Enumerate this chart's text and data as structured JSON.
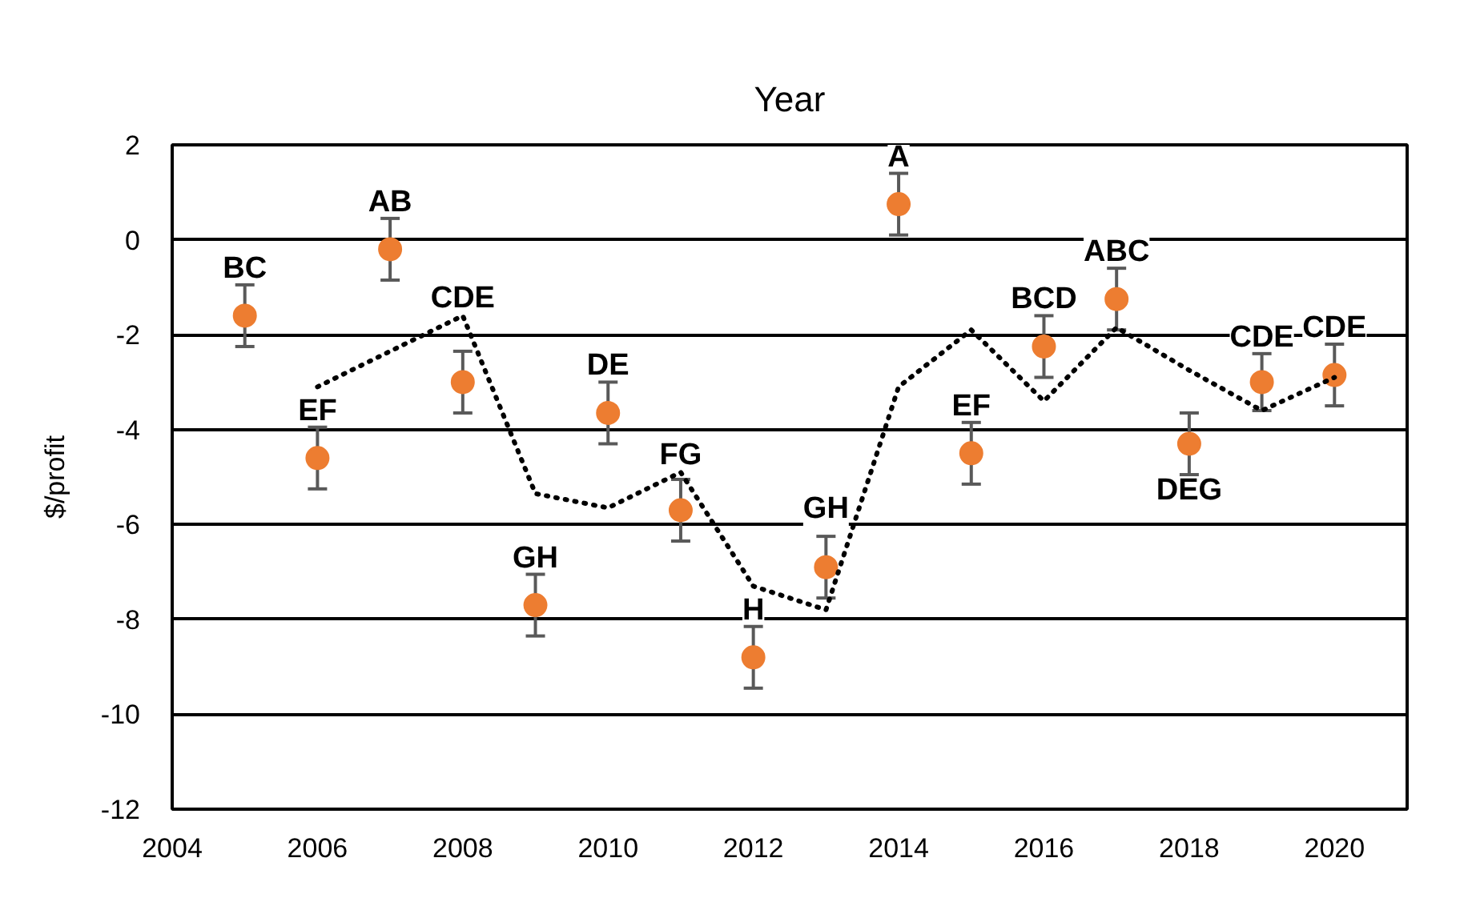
{
  "chart_data": {
    "type": "scatter",
    "xlabel": "Year",
    "ylabel": "$/profit",
    "x": [
      2005,
      2006,
      2007,
      2008,
      2009,
      2010,
      2011,
      2012,
      2013,
      2014,
      2015,
      2016,
      2017,
      2018,
      2019,
      2020
    ],
    "xlim": [
      2004,
      2021
    ],
    "xticks": [
      2004,
      2006,
      2008,
      2010,
      2012,
      2014,
      2016,
      2018,
      2020
    ],
    "ylim": [
      -12,
      2
    ],
    "yticks": [
      -12,
      -10,
      -8,
      -6,
      -4,
      -2,
      0,
      2
    ],
    "grid": "y",
    "marker": "circle",
    "series": [
      {
        "color": "#ed7d31",
        "values": [
          -1.6,
          -4.6,
          -0.2,
          -3.0,
          -7.7,
          -3.65,
          -5.7,
          -8.8,
          -6.9,
          0.75,
          -4.5,
          -2.25,
          -1.25,
          -4.3,
          -3.0,
          -2.85
        ],
        "errors": [
          0.65,
          0.65,
          0.65,
          0.65,
          0.65,
          0.65,
          0.65,
          0.65,
          0.65,
          0.65,
          0.65,
          0.65,
          0.65,
          0.65,
          0.6,
          0.65
        ]
      },
      {
        "type": "line",
        "color": "#000000",
        "line_style": "dotted",
        "marker": "none",
        "x": [
          2006,
          2007,
          2008,
          2009,
          2010,
          2011,
          2012,
          2013,
          2014,
          2015,
          2016,
          2017,
          2018,
          2019,
          2020
        ],
        "values": [
          -3.1,
          -2.35,
          -1.6,
          -5.35,
          -5.65,
          -4.9,
          -7.3,
          -7.8,
          -3.1,
          -1.9,
          -3.4,
          -1.85,
          -2.75,
          -3.6,
          -2.9
        ]
      }
    ],
    "annotations": [
      {
        "text": "BC",
        "x": 2005,
        "y": -1.6
      },
      {
        "text": "EF",
        "x": 2006,
        "y": -4.6
      },
      {
        "text": "AB",
        "x": 2007,
        "y": -0.2
      },
      {
        "text": "CDE",
        "x": 2008,
        "y": -3.0
      },
      {
        "text": "GH",
        "x": 2009,
        "y": -7.7
      },
      {
        "text": "DE",
        "x": 2010,
        "y": -3.65
      },
      {
        "text": "FG",
        "x": 2011,
        "y": -5.7
      },
      {
        "text": "H",
        "x": 2012,
        "y": -8.8
      },
      {
        "text": "GH",
        "x": 2013,
        "y": -6.9
      },
      {
        "text": "A",
        "x": 2014,
        "y": 0.75
      },
      {
        "text": "EF",
        "x": 2015,
        "y": -4.5
      },
      {
        "text": "BCD",
        "x": 2016,
        "y": -2.25
      },
      {
        "text": "ABC",
        "x": 2017,
        "y": -1.25
      },
      {
        "text": "DEG",
        "x": 2018,
        "y": -4.3
      },
      {
        "text": "CDE",
        "x": 2019,
        "y": -3.0
      },
      {
        "text": "CDE",
        "x": 2020,
        "y": -2.85
      }
    ]
  }
}
